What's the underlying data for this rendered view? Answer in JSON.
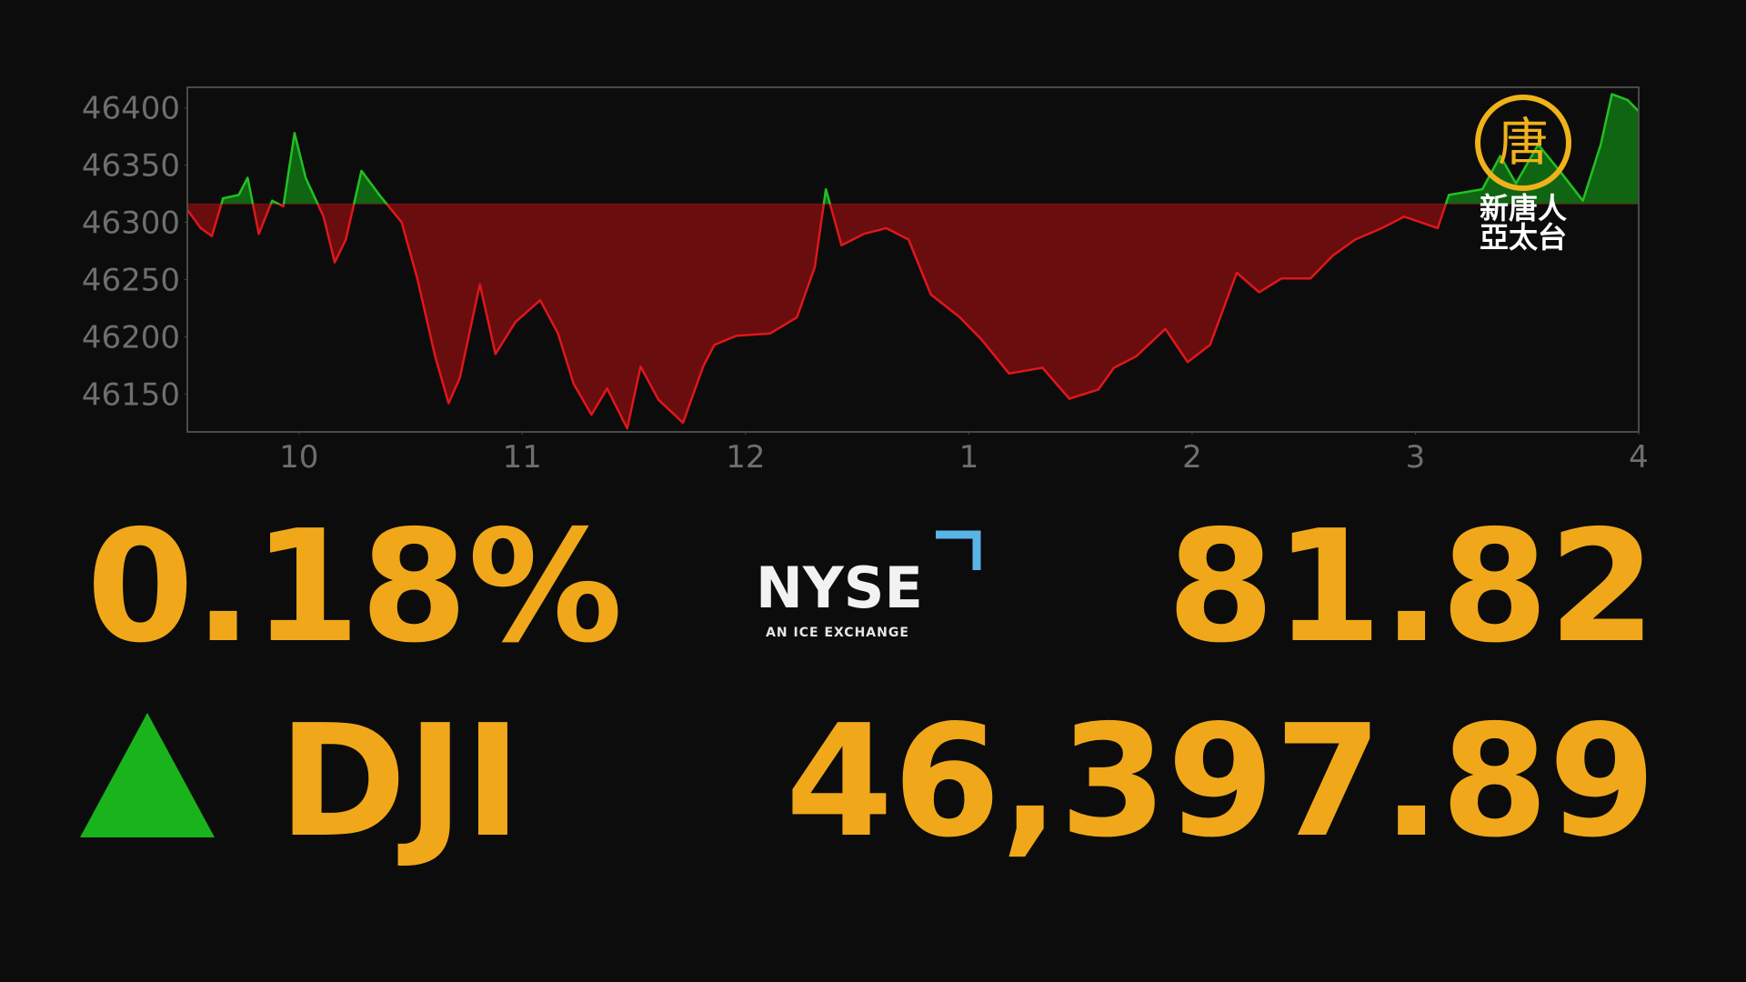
{
  "chart_data": {
    "type": "area",
    "x": [
      9.5,
      9.56,
      9.61,
      9.66,
      9.73,
      9.77,
      9.82,
      9.88,
      9.93,
      9.98,
      10.03,
      10.11,
      10.16,
      10.21,
      10.28,
      10.36,
      10.46,
      10.53,
      10.61,
      10.67,
      10.72,
      10.81,
      10.88,
      10.97,
      11.08,
      11.16,
      11.23,
      11.31,
      11.38,
      11.47,
      11.53,
      11.61,
      11.72,
      11.81,
      11.86,
      11.96,
      12.11,
      12.23,
      12.31,
      12.36,
      12.43,
      12.53,
      12.63,
      12.73,
      12.83,
      12.96,
      13.06,
      13.18,
      13.33,
      13.45,
      13.58,
      13.65,
      13.75,
      13.88,
      13.98,
      14.08,
      14.2,
      14.3,
      14.4,
      14.53,
      14.63,
      14.73,
      14.85,
      14.95,
      15.1,
      15.15,
      15.3,
      15.38,
      15.45,
      15.55,
      15.65,
      15.75,
      15.83,
      15.88,
      15.95,
      16.0
    ],
    "values": [
      46311,
      46295,
      46288,
      46321,
      46324,
      46339,
      46290,
      46319,
      46314,
      46378,
      46339,
      46305,
      46265,
      46285,
      46345,
      46324,
      46300,
      46251,
      46183,
      46142,
      46164,
      46246,
      46185,
      46213,
      46232,
      46203,
      46159,
      46132,
      46155,
      46120,
      46174,
      46145,
      46125,
      46174,
      46193,
      46201,
      46203,
      46217,
      46261,
      46329,
      46280,
      46290,
      46295,
      46285,
      46237,
      46217,
      46197,
      46168,
      46173,
      46146,
      46154,
      46173,
      46183,
      46207,
      46178,
      46193,
      46256,
      46239,
      46251,
      46251,
      46271,
      46285,
      46295,
      46305,
      46295,
      46324,
      46329,
      46358,
      46334,
      46368,
      46344,
      46319,
      46368,
      46412,
      46407,
      46397
    ],
    "baseline": 46316,
    "up_color": "#22c022",
    "down_color": "#e0161a",
    "xlim": [
      9.5,
      16
    ],
    "xticks": [
      10,
      11,
      12,
      {
        "value": 13,
        "label": "1"
      },
      {
        "value": 14,
        "label": "2"
      },
      {
        "value": 15,
        "label": "3"
      },
      {
        "value": 16,
        "label": "4"
      }
    ],
    "ylim": [
      46117,
      46418
    ],
    "yticks": [
      46150,
      46200,
      46250,
      46300,
      46350,
      46400
    ]
  },
  "ticker": {
    "change_pct": "0.18%",
    "symbol": "DJI",
    "change": "81.82",
    "price": "46,397.89"
  },
  "logo": {
    "name": "NYSE",
    "tagline": "AN ICE EXCHANGE"
  },
  "watermark": {
    "emblem": "唐",
    "line1": "新唐人",
    "line2": "亞太台"
  }
}
